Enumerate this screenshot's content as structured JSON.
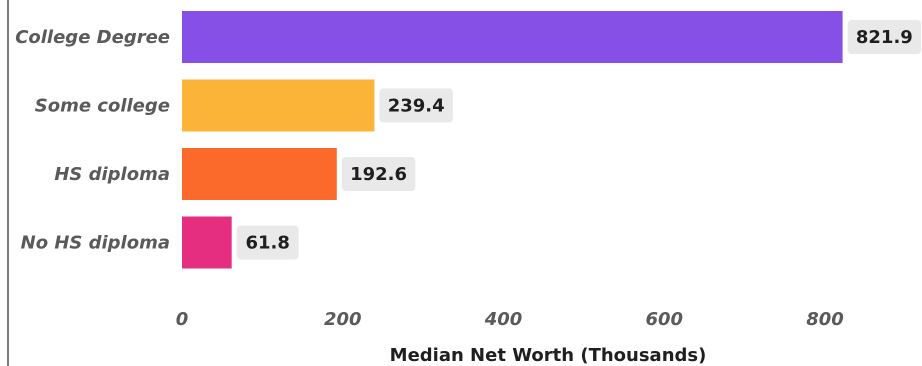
{
  "chart_data": {
    "type": "bar",
    "orientation": "horizontal",
    "categories": [
      "College Degree",
      "Some college",
      "HS diploma",
      "No HS diploma"
    ],
    "values": [
      821.9,
      239.4,
      192.6,
      61.8
    ],
    "value_labels": [
      "821.9",
      "239.4",
      "192.6",
      "61.8"
    ],
    "colors": [
      "#8650e6",
      "#fbb437",
      "#fc6a2b",
      "#e62e80"
    ],
    "xlabel": "Median Net Worth (Thousands)",
    "ylabel": "",
    "title": "",
    "xlim": [
      0,
      900
    ],
    "xticks": [
      0,
      200,
      400,
      600,
      800
    ],
    "xtick_labels": [
      "0",
      "200",
      "400",
      "600",
      "800"
    ],
    "grid": false,
    "legend": "none"
  }
}
